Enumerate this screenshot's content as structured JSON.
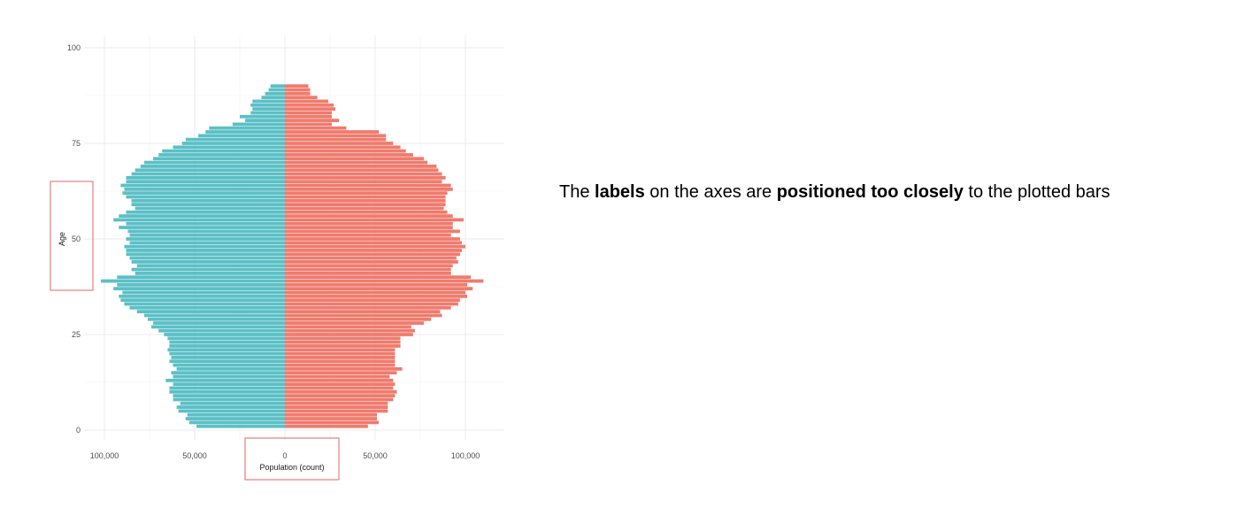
{
  "chart_data": {
    "type": "bar",
    "orientation": "horizontal",
    "subtype": "population-pyramid",
    "xlabel": "Population (count)",
    "ylabel": "Age",
    "xlim": [
      -120000,
      120000
    ],
    "ylim": [
      0,
      100
    ],
    "x_ticks": [
      -100000,
      -50000,
      0,
      50000,
      100000
    ],
    "x_tick_labels": [
      "100,000",
      "50,000",
      "0",
      "50,000",
      "100,000"
    ],
    "y_ticks": [
      0,
      25,
      50,
      75,
      100
    ],
    "y_tick_labels": [
      "0",
      "25",
      "50",
      "75",
      "100"
    ],
    "grid": true,
    "ages": [
      1,
      2,
      3,
      4,
      5,
      6,
      7,
      8,
      9,
      10,
      11,
      12,
      13,
      14,
      15,
      16,
      17,
      18,
      19,
      20,
      21,
      22,
      23,
      24,
      25,
      26,
      27,
      28,
      29,
      30,
      31,
      32,
      33,
      34,
      35,
      36,
      37,
      38,
      39,
      40,
      41,
      42,
      43,
      44,
      45,
      46,
      47,
      48,
      49,
      50,
      51,
      52,
      53,
      54,
      55,
      56,
      57,
      58,
      59,
      60,
      61,
      62,
      63,
      64,
      65,
      66,
      67,
      68,
      69,
      70,
      71,
      72,
      73,
      74,
      75,
      76,
      77,
      78,
      79,
      80,
      81,
      82,
      83,
      84,
      85,
      86,
      87,
      88,
      89,
      90
    ],
    "series": [
      {
        "color": "#5BC0C6",
        "side": "left",
        "values": [
          -49000,
          -53000,
          -55000,
          -54000,
          -59000,
          -60000,
          -58000,
          -62000,
          -62000,
          -64000,
          -64000,
          -62000,
          -66000,
          -62000,
          -63000,
          -60000,
          -62000,
          -64000,
          -63000,
          -64000,
          -65000,
          -64000,
          -64000,
          -65000,
          -67000,
          -70000,
          -74000,
          -73000,
          -76000,
          -78000,
          -82000,
          -86000,
          -89000,
          -91000,
          -92000,
          -90000,
          -95000,
          -93000,
          -102000,
          -93000,
          -83000,
          -85000,
          -82000,
          -85000,
          -86000,
          -88000,
          -88000,
          -89000,
          -86000,
          -88000,
          -86000,
          -87000,
          -92000,
          -88000,
          -95000,
          -92000,
          -88000,
          -83000,
          -85000,
          -85000,
          -88000,
          -90000,
          -89000,
          -91000,
          -88000,
          -88000,
          -85000,
          -83000,
          -80000,
          -78000,
          -73000,
          -70000,
          -68000,
          -62000,
          -57000,
          -55000,
          -48000,
          -44000,
          -42000,
          -29000,
          -22000,
          -25000,
          -19000,
          -18000,
          -19000,
          -18000,
          -13000,
          -11000,
          -9000,
          -8000
        ]
      },
      {
        "color": "#F07B6E",
        "side": "right",
        "values": [
          46000,
          52000,
          51000,
          51000,
          57000,
          57000,
          57000,
          60000,
          61000,
          62000,
          60000,
          61000,
          60000,
          58000,
          62000,
          65000,
          61000,
          61000,
          61000,
          61000,
          61000,
          64000,
          64000,
          64000,
          71000,
          72000,
          70000,
          77000,
          81000,
          87000,
          86000,
          92000,
          96000,
          97000,
          101000,
          100000,
          104000,
          101000,
          110000,
          103000,
          92000,
          92000,
          93000,
          96000,
          95000,
          97000,
          98000,
          100000,
          98000,
          97000,
          92000,
          97000,
          93000,
          93000,
          99000,
          93000,
          90000,
          88000,
          89000,
          89000,
          89000,
          90000,
          93000,
          92000,
          87000,
          89000,
          87000,
          85000,
          84000,
          79000,
          77000,
          71000,
          67000,
          64000,
          60000,
          56000,
          56000,
          52000,
          34000,
          26000,
          30000,
          26000,
          26000,
          28000,
          27000,
          24000,
          18000,
          14000,
          14000,
          13000
        ]
      }
    ]
  },
  "annotation": {
    "before_labels": "The ",
    "labels": "labels",
    "middle": " on the axes are ",
    "emphasis": "positioned too closely",
    "after": " to the plotted bars"
  },
  "highlight_color": "#E06666"
}
